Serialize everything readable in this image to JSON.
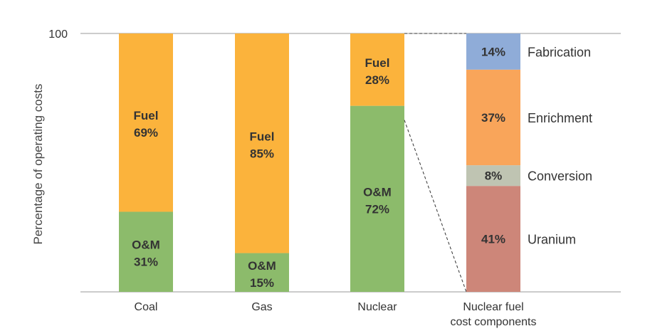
{
  "chart_data": {
    "type": "bar",
    "stacked": true,
    "ylabel": "Percentage of operating costs",
    "ylim": [
      0,
      100
    ],
    "yticks": [
      100
    ],
    "categories": [
      "Coal",
      "Gas",
      "Nuclear"
    ],
    "series": [
      {
        "name": "O&M",
        "color": "#8cbb6b",
        "values": [
          31,
          15,
          72
        ]
      },
      {
        "name": "Fuel",
        "color": "#fbb33c",
        "values": [
          69,
          85,
          28
        ]
      }
    ],
    "bar_labels": [
      {
        "om": [
          "O&M",
          "31%"
        ],
        "fuel": [
          "Fuel",
          "69%"
        ]
      },
      {
        "om": [
          "O&M",
          "15%"
        ],
        "fuel": [
          "Fuel",
          "85%"
        ]
      },
      {
        "om": [
          "O&M",
          "72%"
        ],
        "fuel": [
          "Fuel",
          "28%"
        ]
      }
    ],
    "breakdown": {
      "category": [
        "Nuclear fuel",
        "cost components"
      ],
      "segments": [
        {
          "name": "Uranium",
          "value": 41,
          "label": "41%",
          "color": "#cd8679"
        },
        {
          "name": "Conversion",
          "value": 8,
          "label": "8%",
          "color": "#bfc4b2"
        },
        {
          "name": "Enrichment",
          "value": 37,
          "label": "37%",
          "color": "#f9a55a"
        },
        {
          "name": "Fabrication",
          "value": 14,
          "label": "14%",
          "color": "#8facd8"
        }
      ]
    },
    "grid_color": "#999999",
    "connector_color": "#333333"
  }
}
